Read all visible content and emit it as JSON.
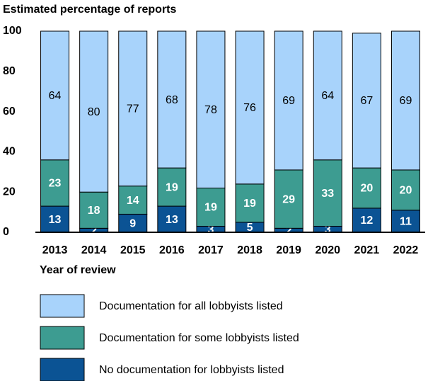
{
  "chart_data": {
    "type": "stacked_bar",
    "y_label": "Estimated percentage of reports",
    "x_label": "Year of review",
    "categories": [
      "2013",
      "2014",
      "2015",
      "2016",
      "2017",
      "2018",
      "2019",
      "2020",
      "2021",
      "2022"
    ],
    "series": [
      {
        "name": "No documentation for lobbyists listed",
        "color": "#0b5394",
        "values": [
          13,
          2,
          9,
          13,
          3,
          5,
          2,
          3,
          12,
          11
        ]
      },
      {
        "name": "Documentation for some lobbyists listed",
        "color": "#3d9c91",
        "values": [
          23,
          18,
          14,
          19,
          19,
          19,
          29,
          33,
          20,
          20
        ]
      },
      {
        "name": "Documentation for all lobbyists listed",
        "color": "#a8d3fb",
        "values": [
          64,
          80,
          77,
          68,
          78,
          76,
          69,
          64,
          67,
          69
        ]
      }
    ],
    "ylim": [
      0,
      100
    ],
    "yticks": [
      0,
      20,
      40,
      60,
      80,
      100
    ]
  }
}
